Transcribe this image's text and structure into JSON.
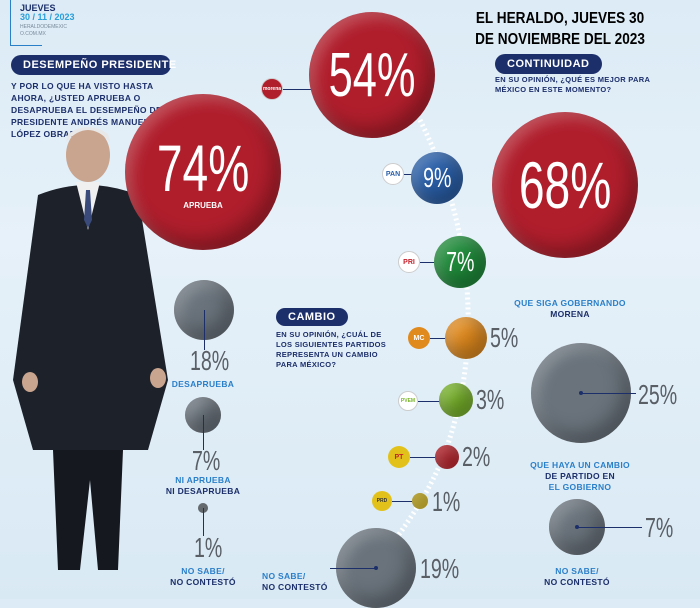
{
  "header": {
    "day": "JUEVES",
    "date": "30 / 11 / 2023",
    "site": "HERALDODEMEXICO.COM.MX",
    "caption_line1": "EL HERALDO, JUEVES 30",
    "caption_line2": "DE NOVIEMBRE DEL 2023"
  },
  "sections": {
    "desempeno": {
      "title": "DESEMPEÑO PRESIDENTE",
      "question": "Y POR LO QUE HA VISTO HASTA AHORA, ¿USTED APRUEBA O DESAPRUEBA EL DESEMPEÑO DEL PRESIDENTE ANDRÉS MANUEL LÓPEZ OBRADOR?"
    },
    "cambio": {
      "title": "CAMBIO",
      "question": "EN SU OPINIÓN, ¿CUÁL DE LOS SIGUIENTES PARTIDOS REPRESENTA UN CAMBIO PARA MÉXICO?"
    },
    "continuidad": {
      "title": "CONTINUIDAD",
      "question": "EN SU OPINIÓN, ¿QUÉ ES MEJOR PARA MÉXICO EN ESTE MOMENTO?"
    }
  },
  "chart_data": [
    {
      "type": "bubble",
      "title": "DESEMPEÑO PRESIDENTE",
      "categories": [
        "APRUEBA",
        "DESAPRUEBA",
        "NI APRUEBA NI DESAPRUEBA",
        "NO SABE / NO CONTESTÓ"
      ],
      "values": [
        74,
        18,
        7,
        1
      ],
      "labels": [
        "74%",
        "18%",
        "7%",
        "1%"
      ],
      "label_lines": [
        [
          "APRUEBA"
        ],
        [
          "DESAPRUEBA"
        ],
        [
          "NI APRUEBA",
          "NI DESAPRUEBA"
        ],
        [
          "NO SABE/",
          "NO CONTESTÓ"
        ]
      ]
    },
    {
      "type": "bubble",
      "title": "CAMBIO",
      "categories": [
        "MORENA",
        "PAN",
        "PRI",
        "MC",
        "PVEM",
        "PT",
        "PRD",
        "NO SABE / NO CONTESTÓ"
      ],
      "logos": [
        "morena",
        "PAN",
        "PRI",
        "MC",
        "PVEM",
        "PT",
        "PRD"
      ],
      "values": [
        54,
        9,
        7,
        5,
        3,
        2,
        1,
        19
      ],
      "labels": [
        "54%",
        "9%",
        "7%",
        "5%",
        "3%",
        "2%",
        "1%",
        "19%"
      ],
      "nosabe_lines": [
        "NO SABE/",
        "NO CONTESTÓ"
      ]
    },
    {
      "type": "bubble",
      "title": "CONTINUIDAD",
      "categories": [
        "QUE SIGA GOBERNANDO MORENA",
        "QUE HAYA UN CAMBIO DE PARTIDO EN EL GOBIERNO",
        "NO SABE / NO CONTESTÓ"
      ],
      "values": [
        68,
        25,
        7
      ],
      "labels": [
        "68%",
        "25%",
        "7%"
      ],
      "label_lines": [
        [
          "QUE SIGA GOBERNANDO",
          "MORENA"
        ],
        [
          "QUE HAYA UN CAMBIO",
          "DE PARTIDO EN",
          "EL GOBIERNO"
        ],
        [
          "NO SABE/",
          "NO CONTESTÓ"
        ]
      ]
    }
  ],
  "colors": {
    "red": "#b01e2c",
    "grey": "#6a737c",
    "navy": "#1c2f6b",
    "pan": "#2a5fa8",
    "pri": "#1f8a3a",
    "mc": "#e08a1e",
    "pvem": "#79b52a",
    "pt": "#c4202a",
    "prd": "#e2c21a"
  }
}
